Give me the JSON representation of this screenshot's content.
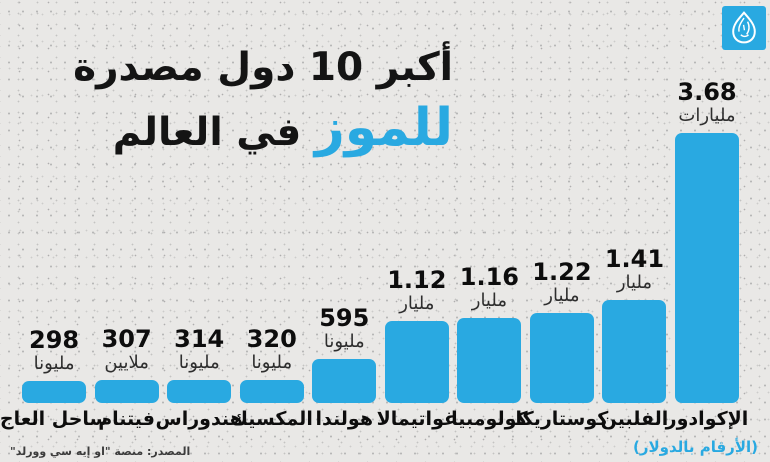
{
  "meta": {
    "brand_color": "#29a9e1",
    "background_color": "#e9e8e6",
    "text_color": "#0d0d0d"
  },
  "logo": {
    "name": "al-jazeera-logo"
  },
  "title": {
    "line1": "أكبر 10 دول مصدرة",
    "line2_highlight": "للموز",
    "line2_rest": " في العالم"
  },
  "footer": {
    "source": "المصدر: منصة \"او إيه سي وورلد\"",
    "note": "(الأرقام بالدولار)"
  },
  "chart_data": {
    "type": "bar",
    "title": "أكبر 10 دول مصدرة للموز في العالم",
    "note": "(الأرقام بالدولار)",
    "source": "المصدر: منصة \"او إيه سي وورلد\"",
    "bar_color": "#29a9e1",
    "orientation": "vertical",
    "layout": "bars ordered largest to smallest, rendered right-to-left; value labels above bars; country labels below bars; no axes or gridlines",
    "categories": [
      "الإكوادور",
      "الفلبين",
      "كوستاريكا",
      "كولومبيا",
      "غواتيمالا",
      "هولندا",
      "المكسيك",
      "هندوراس",
      "فيتنام",
      "ساحل العاج"
    ],
    "values_billions_usd": [
      3.68,
      1.41,
      1.22,
      1.16,
      1.12,
      0.595,
      0.32,
      0.314,
      0.307,
      0.298
    ],
    "bars": [
      {
        "country": "الإكوادور",
        "value": "3.68",
        "unit": "مليارات",
        "billions": 3.68
      },
      {
        "country": "الفلبين",
        "value": "1.41",
        "unit": "مليار",
        "billions": 1.41
      },
      {
        "country": "كوستاريكا",
        "value": "1.22",
        "unit": "مليار",
        "billions": 1.22
      },
      {
        "country": "كولومبيا",
        "value": "1.16",
        "unit": "مليار",
        "billions": 1.16
      },
      {
        "country": "غواتيمالا",
        "value": "1.12",
        "unit": "مليار",
        "billions": 1.12
      },
      {
        "country": "هولندا",
        "value": "595",
        "unit": "مليونا",
        "billions": 0.595
      },
      {
        "country": "المكسيك",
        "value": "320",
        "unit": "مليونا",
        "billions": 0.32
      },
      {
        "country": "هندوراس",
        "value": "314",
        "unit": "مليونا",
        "billions": 0.314
      },
      {
        "country": "فيتنام",
        "value": "307",
        "unit": "ملايين",
        "billions": 0.307
      },
      {
        "country": "ساحل العاج",
        "value": "298",
        "unit": "مليونا",
        "billions": 0.298
      }
    ]
  }
}
